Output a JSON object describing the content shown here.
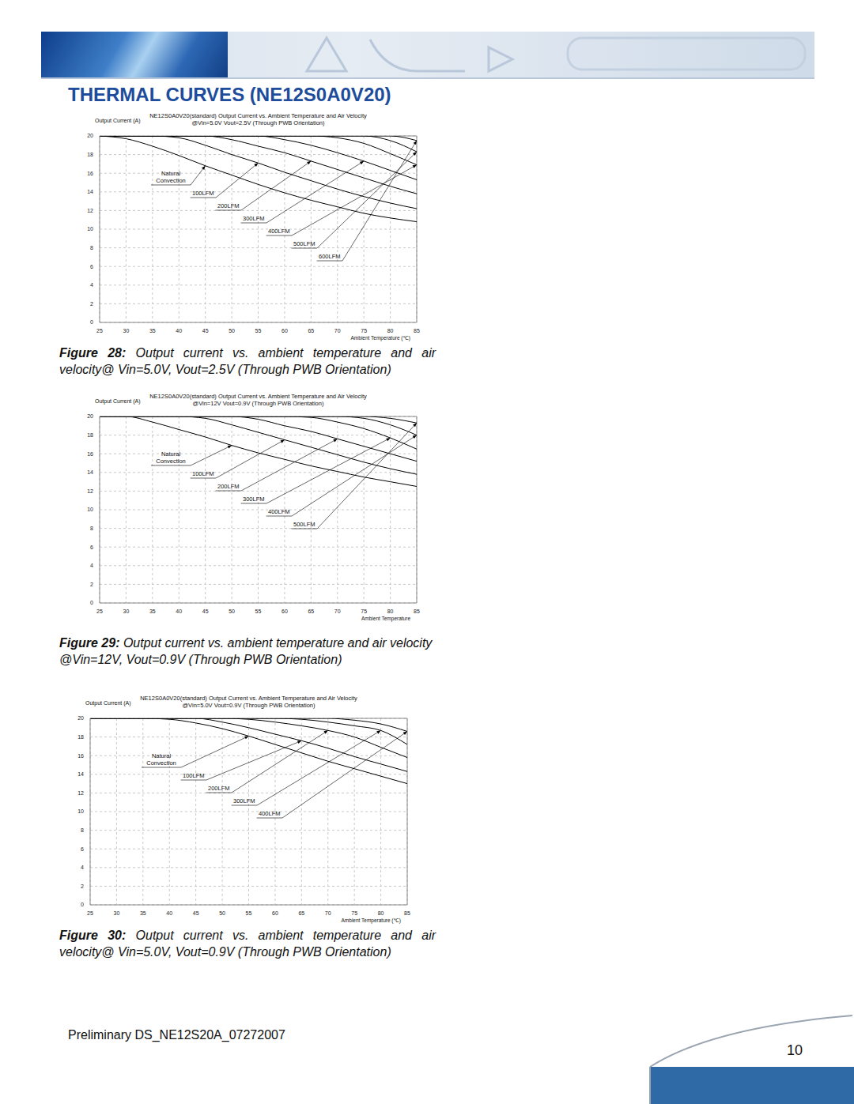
{
  "header": {
    "title": "THERMAL CURVES (NE12S0A0V20)"
  },
  "chart_data": [
    {
      "type": "line",
      "title": "NE12S0A0V20(standard)  Output Current vs. Ambient Temperature and Air Velocity",
      "subtitle": "@Vin=5.0V Vout=2.5V (Through PWB Orientation)",
      "y_label": "Output Current (A)",
      "x_label": "Ambient Temperature (℃)",
      "x": [
        25,
        30,
        35,
        40,
        45,
        50,
        55,
        60,
        65,
        70,
        75,
        80,
        85
      ],
      "series": [
        {
          "name": "Natural Convection",
          "color": "#000000",
          "values": [
            20,
            19.7,
            18.9,
            17.9,
            16.8,
            15.8,
            14.8,
            13.9,
            13.1,
            12.4,
            11.7,
            11.2,
            10.8
          ]
        },
        {
          "name": "100LFM",
          "color": "#000000",
          "values": [
            20,
            20,
            20,
            19.8,
            19.0,
            18.0,
            17.1,
            16.1,
            15.2,
            14.3,
            13.5,
            12.8,
            12.2
          ]
        },
        {
          "name": "200LFM",
          "color": "#000000",
          "values": [
            20,
            20,
            20,
            20,
            20,
            19.6,
            18.9,
            18.2,
            17.3,
            16.4,
            15.5,
            14.6,
            13.8
          ]
        },
        {
          "name": "300LFM",
          "color": "#000000",
          "values": [
            20,
            20,
            20,
            20,
            20,
            20,
            20,
            19.6,
            19.0,
            18.2,
            17.3,
            16.3,
            15.3
          ]
        },
        {
          "name": "400LFM",
          "color": "#000000",
          "values": [
            20,
            20,
            20,
            20,
            20,
            20,
            20,
            20,
            20,
            19.8,
            19.2,
            18.1,
            16.9
          ]
        },
        {
          "name": "500LFM",
          "color": "#000000",
          "values": [
            20,
            20,
            20,
            20,
            20,
            20,
            20,
            20,
            20,
            20,
            20,
            19.5,
            18.3
          ]
        },
        {
          "name": "600LFM",
          "color": "#000000",
          "values": [
            20,
            20,
            20,
            20,
            20,
            20,
            20,
            20,
            20,
            20,
            20,
            20,
            19.5
          ]
        }
      ],
      "xlim": [
        25,
        85
      ],
      "ylim": [
        0,
        20
      ],
      "xticks": [
        25,
        30,
        35,
        40,
        45,
        50,
        55,
        60,
        65,
        70,
        75,
        80,
        85
      ],
      "yticks": [
        0,
        2,
        4,
        6,
        8,
        10,
        12,
        14,
        16,
        18,
        20
      ],
      "grid": true,
      "caption": {
        "label": "Figure 28:",
        "text": "Output current vs. ambient temperature and air velocity@ Vin=5.0V, Vout=2.5V (Through PWB Orientation)"
      }
    },
    {
      "type": "line",
      "title": "NE12S0A0V20(standard)  Output Current vs. Ambient Temperature and Air Velocity",
      "subtitle": "@Vin=12V Vout=0.9V (Through PWB Orientation)",
      "y_label": "Output Current (A)",
      "x_label": "Ambient Temperature",
      "x": [
        25,
        30,
        35,
        40,
        45,
        50,
        55,
        60,
        65,
        70,
        75,
        80,
        85
      ],
      "series": [
        {
          "name": "Natural Convection",
          "color": "#000000",
          "values": [
            20,
            20,
            19.4,
            18.6,
            17.8,
            16.9,
            16.1,
            15.4,
            14.7,
            14.1,
            13.5,
            13.0,
            12.5
          ]
        },
        {
          "name": "100LFM",
          "color": "#000000",
          "values": [
            20,
            20,
            20,
            20,
            19.8,
            19.1,
            18.3,
            17.5,
            16.7,
            15.9,
            15.1,
            14.4,
            13.8
          ]
        },
        {
          "name": "200LFM",
          "color": "#000000",
          "values": [
            20,
            20,
            20,
            20,
            20,
            20,
            19.7,
            19.0,
            18.4,
            17.6,
            16.8,
            16.0,
            15.2
          ]
        },
        {
          "name": "300LFM",
          "color": "#000000",
          "values": [
            20,
            20,
            20,
            20,
            20,
            20,
            20,
            20,
            19.9,
            19.4,
            18.7,
            17.7,
            16.5
          ]
        },
        {
          "name": "400LFM",
          "color": "#000000",
          "values": [
            20,
            20,
            20,
            20,
            20,
            20,
            20,
            20,
            20,
            20,
            19.8,
            19.1,
            18.0
          ]
        },
        {
          "name": "500LFM",
          "color": "#000000",
          "values": [
            20,
            20,
            20,
            20,
            20,
            20,
            20,
            20,
            20,
            20,
            20,
            19.8,
            19.3
          ]
        }
      ],
      "xlim": [
        25,
        85
      ],
      "ylim": [
        0,
        20
      ],
      "xticks": [
        25,
        30,
        35,
        40,
        45,
        50,
        55,
        60,
        65,
        70,
        75,
        80,
        85
      ],
      "yticks": [
        0,
        2,
        4,
        6,
        8,
        10,
        12,
        14,
        16,
        18,
        20
      ],
      "grid": true,
      "caption": {
        "label": "Figure 29:",
        "text": "Output current vs. ambient temperature and air velocity @Vin=12V, Vout=0.9V (Through PWB Orientation)"
      }
    },
    {
      "type": "line",
      "title": "NE12S0A0V20(standard)  Output Current vs. Ambient Temperature and Air Velocity",
      "subtitle": "@Vin=5.0V Vout=0.9V (Through PWB Orientation)",
      "y_label": "Output Current (A)",
      "x_label": "Ambient Temperature (℃)",
      "x": [
        25,
        30,
        35,
        40,
        45,
        50,
        55,
        60,
        65,
        70,
        75,
        80,
        85
      ],
      "series": [
        {
          "name": "Natural Convection",
          "color": "#000000",
          "values": [
            20,
            20,
            20,
            19.9,
            19.5,
            18.9,
            18.1,
            17.2,
            16.3,
            15.4,
            14.6,
            13.8,
            13.0
          ]
        },
        {
          "name": "100LFM",
          "color": "#000000",
          "values": [
            20,
            20,
            20,
            20,
            20,
            19.6,
            19.0,
            18.3,
            17.6,
            16.8,
            15.9,
            15.1,
            14.3
          ]
        },
        {
          "name": "200LFM",
          "color": "#000000",
          "values": [
            20,
            20,
            20,
            20,
            20,
            20,
            19.9,
            19.6,
            19.2,
            18.7,
            18.0,
            16.9,
            15.8
          ]
        },
        {
          "name": "300LFM",
          "color": "#000000",
          "values": [
            20,
            20,
            20,
            20,
            20,
            20,
            20,
            20,
            19.9,
            19.6,
            19.2,
            18.7,
            17.2
          ]
        },
        {
          "name": "400LFM",
          "color": "#000000",
          "values": [
            20,
            20,
            20,
            20,
            20,
            20,
            20,
            20,
            20,
            20,
            19.8,
            19.4,
            18.6
          ]
        }
      ],
      "xlim": [
        25,
        85
      ],
      "ylim": [
        0,
        20
      ],
      "xticks": [
        25,
        30,
        35,
        40,
        45,
        50,
        55,
        60,
        65,
        70,
        75,
        80,
        85
      ],
      "yticks": [
        0,
        2,
        4,
        6,
        8,
        10,
        12,
        14,
        16,
        18,
        20
      ],
      "grid": true,
      "caption": {
        "label": "Figure 30:",
        "text": "Output current vs. ambient temperature and air velocity@ Vin=5.0V, Vout=0.9V (Through PWB Orientation)"
      }
    }
  ],
  "footer": {
    "text": "Preliminary DS_NE12S20A_07272007",
    "page_number": 10
  }
}
